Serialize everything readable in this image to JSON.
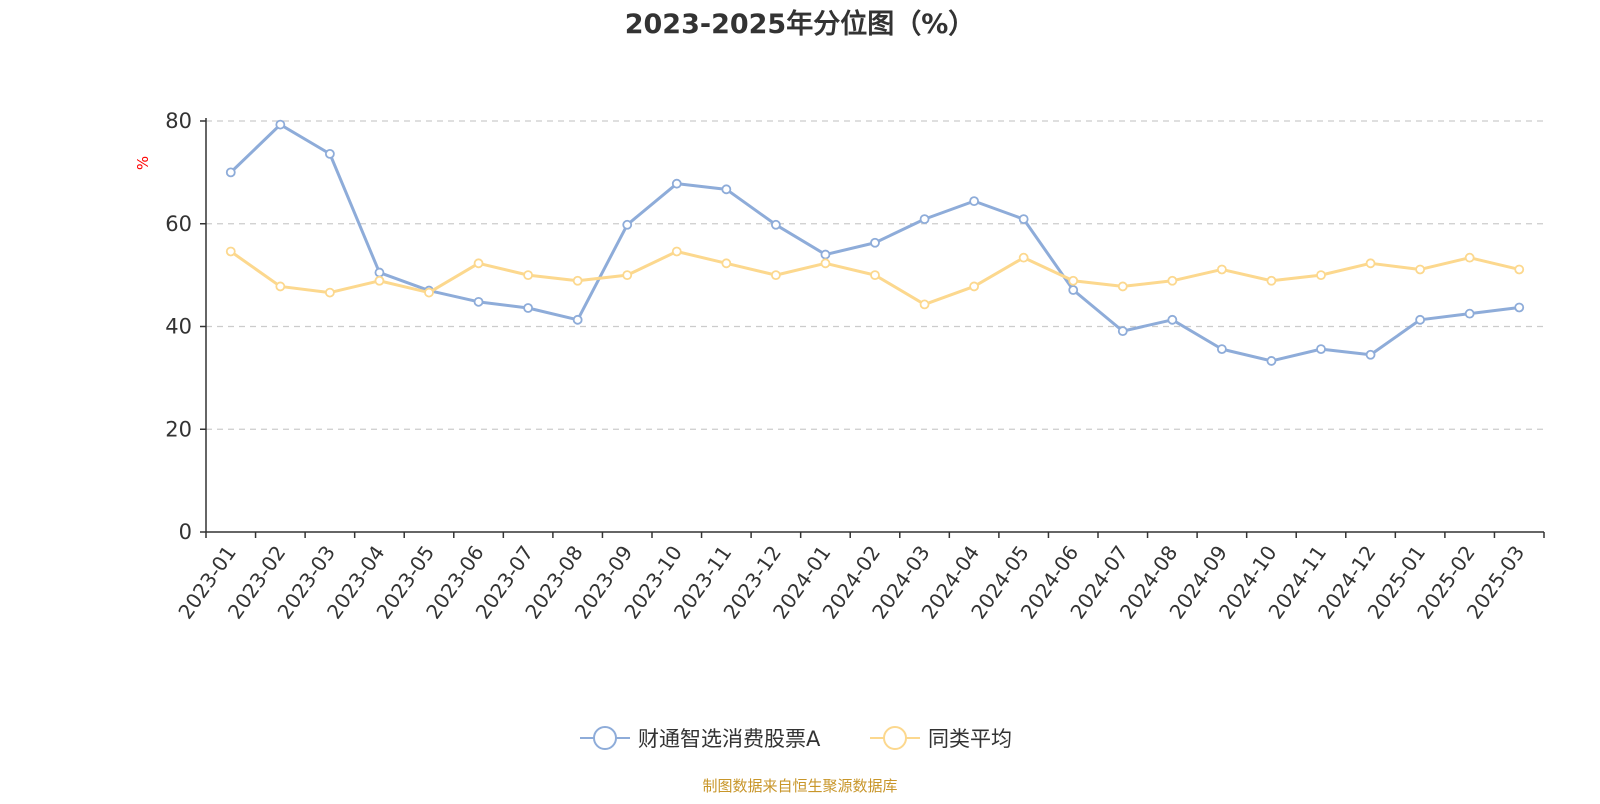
{
  "chart_data": {
    "type": "line",
    "title": "2023-2025年分位图（%）",
    "ylabel": "%",
    "xlabel": "",
    "ylim": [
      0,
      80
    ],
    "yticks": [
      0,
      20,
      40,
      60,
      80
    ],
    "grid": true,
    "legend_position": "bottom-center",
    "categories": [
      "2023-01",
      "2023-02",
      "2023-03",
      "2023-04",
      "2023-05",
      "2023-06",
      "2023-07",
      "2023-08",
      "2023-09",
      "2023-10",
      "2023-11",
      "2023-12",
      "2024-01",
      "2024-02",
      "2024-03",
      "2024-04",
      "2024-05",
      "2024-06",
      "2024-07",
      "2024-08",
      "2024-09",
      "2024-10",
      "2024-11",
      "2024-12",
      "2025-01",
      "2025-02",
      "2025-03"
    ],
    "series": [
      {
        "name": "财通智选消费股票A",
        "color": "#8eacd9",
        "values": [
          70.0,
          79.3,
          73.6,
          50.5,
          47.0,
          44.8,
          43.6,
          41.3,
          59.8,
          67.8,
          66.7,
          59.8,
          54.0,
          56.3,
          60.9,
          64.4,
          60.9,
          47.1,
          39.1,
          41.3,
          35.6,
          33.3,
          35.6,
          34.5,
          41.3,
          42.5,
          43.7
        ]
      },
      {
        "name": "同类平均",
        "color": "#fcd88e",
        "values": [
          54.6,
          47.8,
          46.6,
          48.9,
          46.6,
          52.3,
          50.0,
          48.9,
          50.0,
          54.6,
          52.3,
          50.0,
          52.3,
          50.0,
          44.3,
          47.8,
          53.4,
          48.9,
          47.8,
          48.9,
          51.1,
          48.9,
          50.0,
          52.3,
          51.1,
          53.4,
          51.1
        ]
      }
    ]
  },
  "footer": {
    "source": "制图数据来自恒生聚源数据库"
  },
  "colors": {
    "title": "#333333",
    "axis": "#333333",
    "grid": "#cccccc",
    "ylabel": "#ff0000",
    "source": "#c8962a"
  }
}
